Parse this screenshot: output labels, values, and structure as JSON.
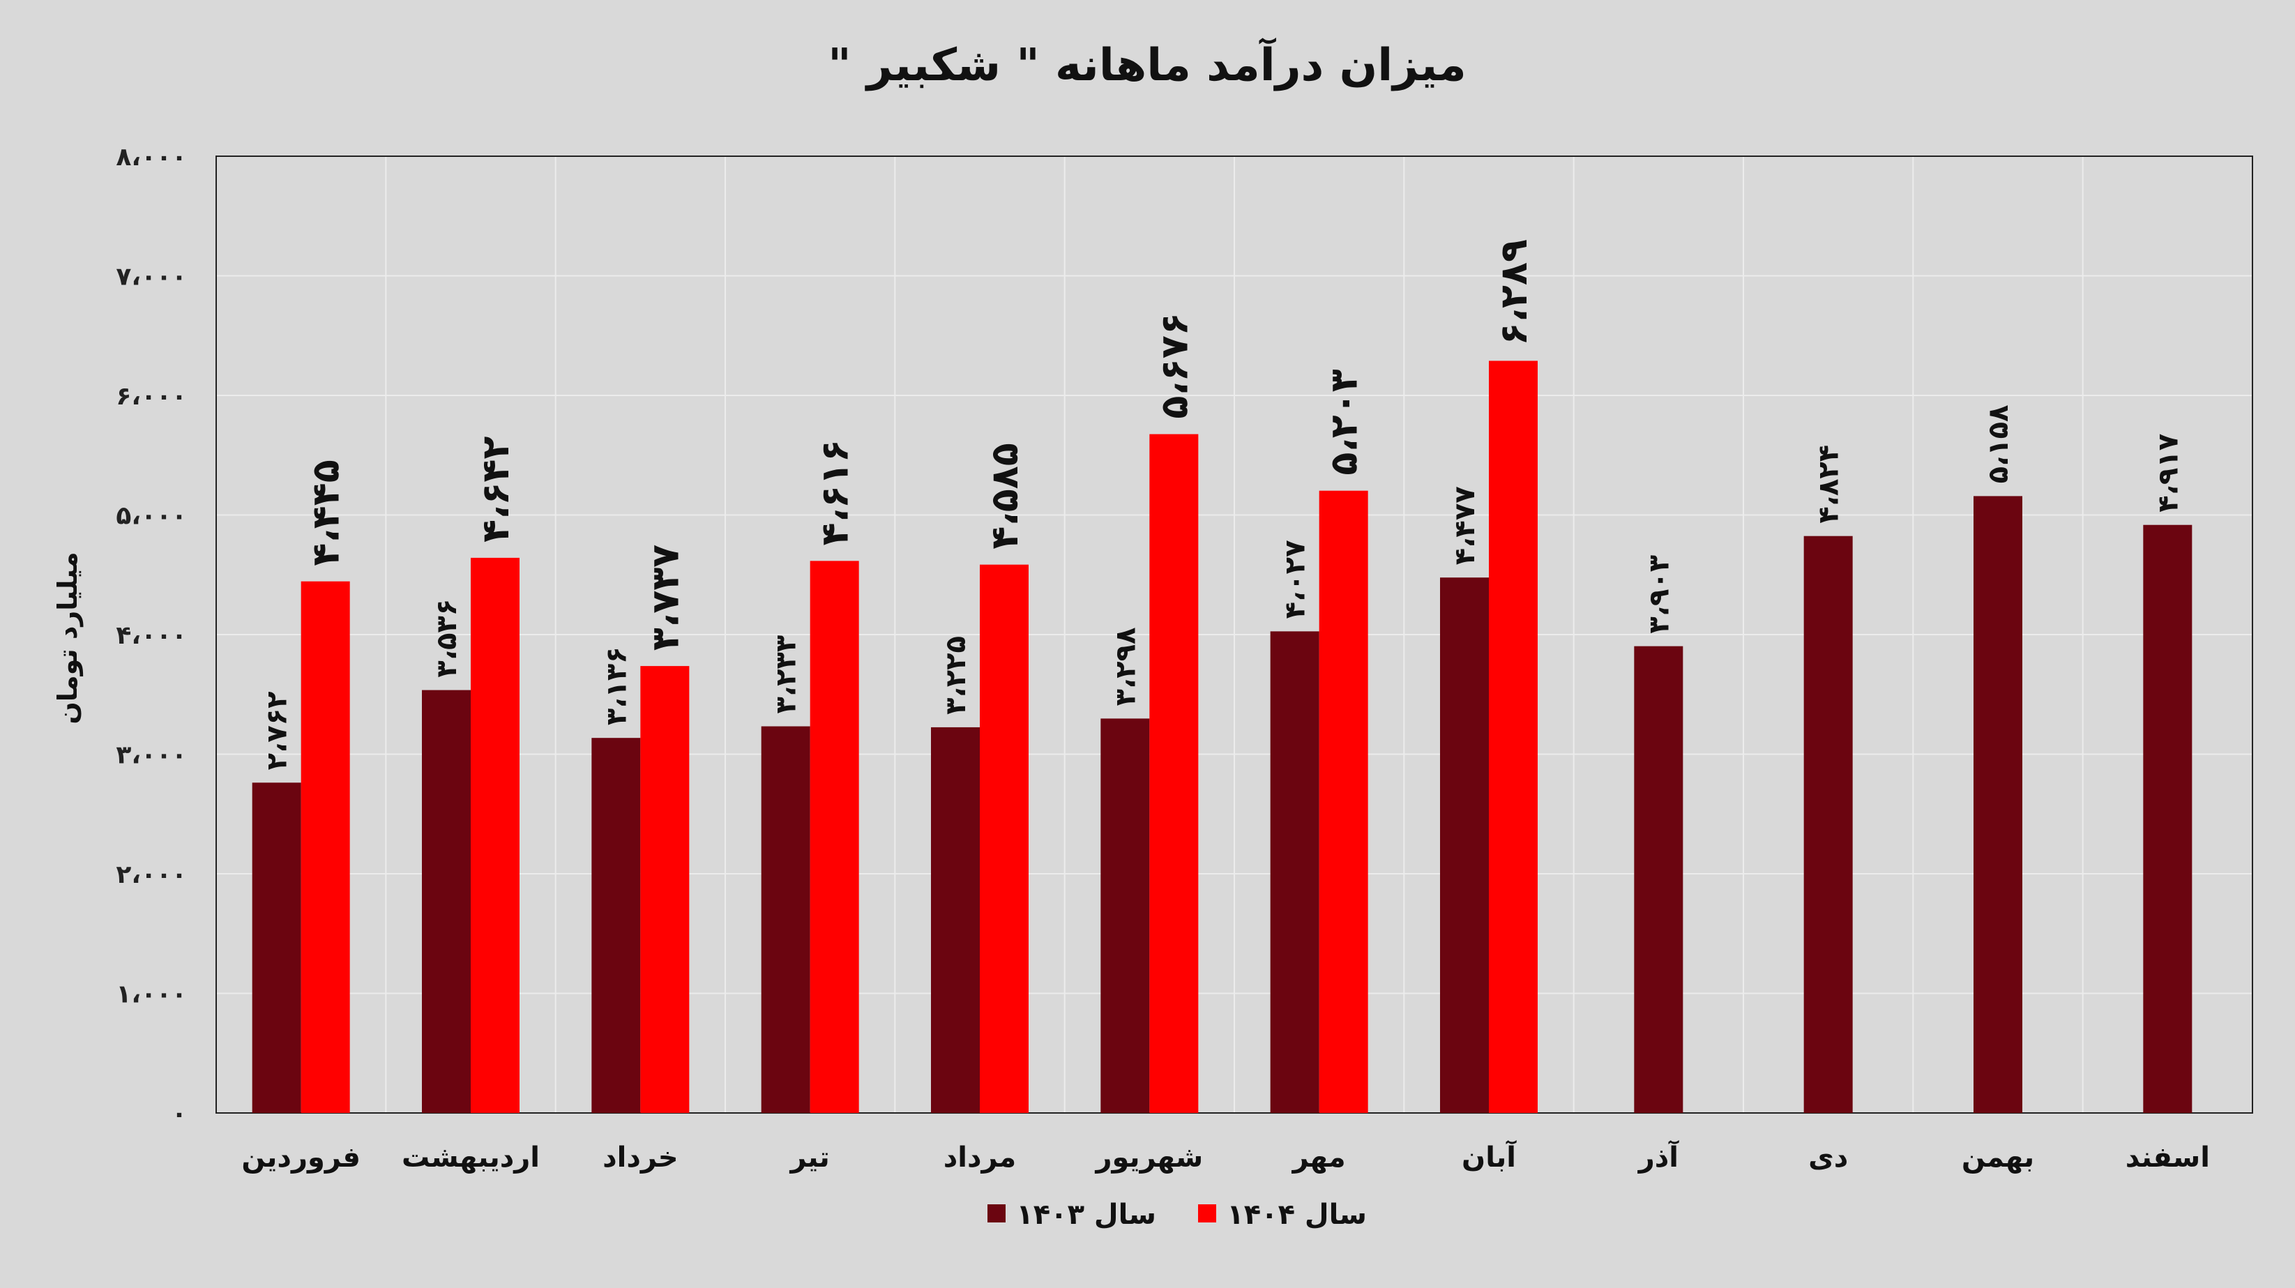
{
  "chart_data": {
    "type": "bar",
    "title": "میزان درآمد ماهانه \" شکبیر \"",
    "ylabel": "میلیارد تومان",
    "xlabel": "",
    "ylim": [
      0,
      8000
    ],
    "yticks": [
      {
        "value": 0,
        "label": "۰"
      },
      {
        "value": 1000,
        "label": "۱،۰۰۰"
      },
      {
        "value": 2000,
        "label": "۲،۰۰۰"
      },
      {
        "value": 3000,
        "label": "۳،۰۰۰"
      },
      {
        "value": 4000,
        "label": "۴،۰۰۰"
      },
      {
        "value": 5000,
        "label": "۵،۰۰۰"
      },
      {
        "value": 6000,
        "label": "۶،۰۰۰"
      },
      {
        "value": 7000,
        "label": "۷،۰۰۰"
      },
      {
        "value": 8000,
        "label": "۸،۰۰۰"
      }
    ],
    "categories": [
      "فروردین",
      "اردیبهشت",
      "خرداد",
      "تیر",
      "مرداد",
      "شهریور",
      "مهر",
      "آبان",
      "آذر",
      "دی",
      "بهمن",
      "اسفند"
    ],
    "series": [
      {
        "name": "سال ۱۴۰۳",
        "color": "#6b0510",
        "values": [
          2762,
          3536,
          3136,
          3233,
          3225,
          3298,
          4027,
          4477,
          3903,
          4824,
          5158,
          4917
        ],
        "labels": [
          "۲،۷۶۲",
          "۳،۵۳۶",
          "۳،۱۳۶",
          "۳،۲۳۳",
          "۳،۲۲۵",
          "۳،۲۹۸",
          "۴،۰۲۷",
          "۴،۴۷۷",
          "۳،۹۰۳",
          "۴،۸۲۴",
          "۵،۱۵۸",
          "۴،۹۱۷"
        ]
      },
      {
        "name": "سال ۱۴۰۴",
        "color": "#ff0000",
        "values": [
          4445,
          4642,
          3737,
          4616,
          4585,
          5676,
          5203,
          6289,
          null,
          null,
          null,
          null
        ],
        "labels": [
          "۴،۴۴۵",
          "۴،۶۴۲",
          "۳،۷۳۷",
          "۴،۶۱۶",
          "۴،۵۸۵",
          "۵،۶۷۶",
          "۵،۲۰۳",
          "۶،۲۸۹",
          null,
          null,
          null,
          null
        ]
      }
    ],
    "grid": true,
    "legend_position": "bottom"
  }
}
